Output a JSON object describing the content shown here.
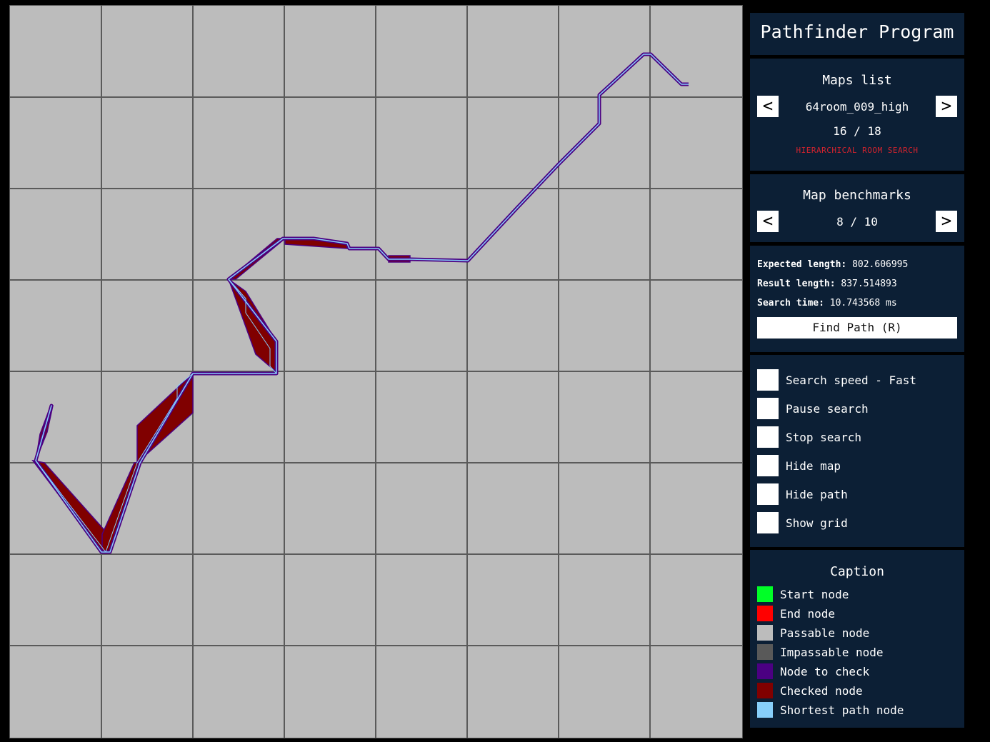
{
  "app_title": "Pathfinder Program",
  "maps_list": {
    "title": "Maps list",
    "prev": "<",
    "next": ">",
    "map_name": "64room_009_high",
    "counter": "16 / 18",
    "algorithm": "HIERARCHICAL ROOM SEARCH"
  },
  "benchmarks": {
    "title": "Map benchmarks",
    "prev": "<",
    "next": ">",
    "counter": "8 / 10"
  },
  "stats": {
    "expected_label": "Expected length:",
    "expected_value": "802.606995",
    "result_label": "Result length:",
    "result_value": "837.514893",
    "time_label": "Search time:",
    "time_value": "10.743568 ms",
    "find_button": "Find Path (R)"
  },
  "options": [
    {
      "label": "Search speed - Fast"
    },
    {
      "label": "Pause search"
    },
    {
      "label": "Stop search"
    },
    {
      "label": "Hide map"
    },
    {
      "label": "Hide path"
    },
    {
      "label": "Show grid"
    }
  ],
  "caption": {
    "title": "Caption",
    "items": [
      {
        "label": "Start node",
        "color": "#00ff27"
      },
      {
        "label": "End node",
        "color": "#ff0000"
      },
      {
        "label": "Passable node",
        "color": "#bcbcbc"
      },
      {
        "label": "Impassable node",
        "color": "#595959"
      },
      {
        "label": "Node to check",
        "color": "#4b0082"
      },
      {
        "label": "Checked node",
        "color": "#800000"
      },
      {
        "label": "Shortest path node",
        "color": "#87cefa"
      }
    ]
  },
  "colors": {
    "passable": "#bcbcbc",
    "grid_line": "#5a5a5a",
    "checked": "#800000",
    "to_check": "#4b0082",
    "path": "#87cefa",
    "panel_bg": "#0c1f35",
    "accent_red": "#d2232e"
  }
}
